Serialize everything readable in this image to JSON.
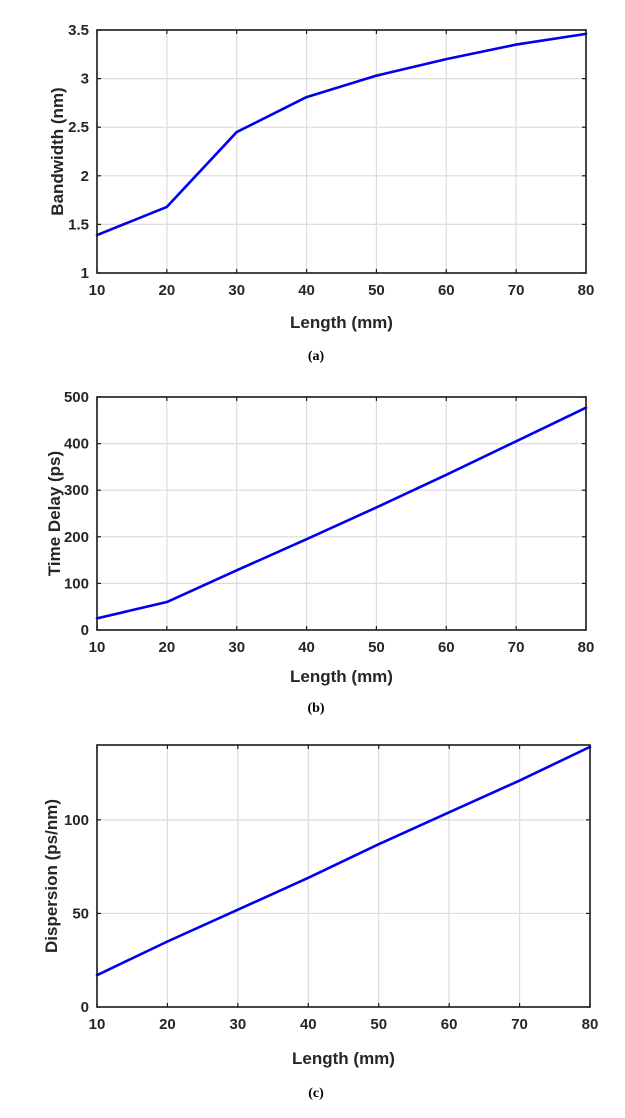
{
  "chart_data": [
    {
      "type": "line",
      "panel_label": "(a)",
      "xlabel": "Length (mm)",
      "ylabel": "Bandwidth (nm)",
      "xlim": [
        10,
        80
      ],
      "ylim": [
        1,
        3.5
      ],
      "xticks": [
        10,
        20,
        30,
        40,
        50,
        60,
        70,
        80
      ],
      "yticks": [
        1,
        1.5,
        2,
        2.5,
        3,
        3.5
      ],
      "ytick_labels": [
        "1",
        "1.5",
        "2",
        "2.5",
        "3",
        "3.5"
      ],
      "grid": true,
      "color": "#0000ee",
      "x": [
        10,
        20,
        30,
        40,
        50,
        60,
        70,
        80
      ],
      "y": [
        1.39,
        1.68,
        2.45,
        2.81,
        3.03,
        3.2,
        3.35,
        3.46
      ]
    },
    {
      "type": "line",
      "panel_label": "(b)",
      "xlabel": "Length (mm)",
      "ylabel": "Time Delay (ps)",
      "xlim": [
        10,
        80
      ],
      "ylim": [
        0,
        500
      ],
      "xticks": [
        10,
        20,
        30,
        40,
        50,
        60,
        70,
        80
      ],
      "yticks": [
        0,
        100,
        200,
        300,
        400,
        500
      ],
      "ytick_labels": [
        "0",
        "100",
        "200",
        "300",
        "400",
        "500"
      ],
      "grid": true,
      "color": "#0000ee",
      "x": [
        10,
        20,
        30,
        40,
        50,
        60,
        70,
        80
      ],
      "y": [
        25,
        60,
        128,
        195,
        263,
        333,
        405,
        477
      ]
    },
    {
      "type": "line",
      "panel_label": "(c)",
      "xlabel": "Length (mm)",
      "ylabel": "Dispersion (ps/nm)",
      "xlim": [
        10,
        80
      ],
      "ylim": [
        0,
        140
      ],
      "xticks": [
        10,
        20,
        30,
        40,
        50,
        60,
        70,
        80
      ],
      "yticks": [
        0,
        50,
        100
      ],
      "ytick_labels": [
        "0",
        "50",
        "100"
      ],
      "grid": true,
      "color": "#0000ee",
      "x": [
        10,
        20,
        30,
        40,
        50,
        60,
        70,
        80
      ],
      "y": [
        17,
        35,
        52,
        69,
        87,
        104,
        121,
        139
      ]
    }
  ]
}
